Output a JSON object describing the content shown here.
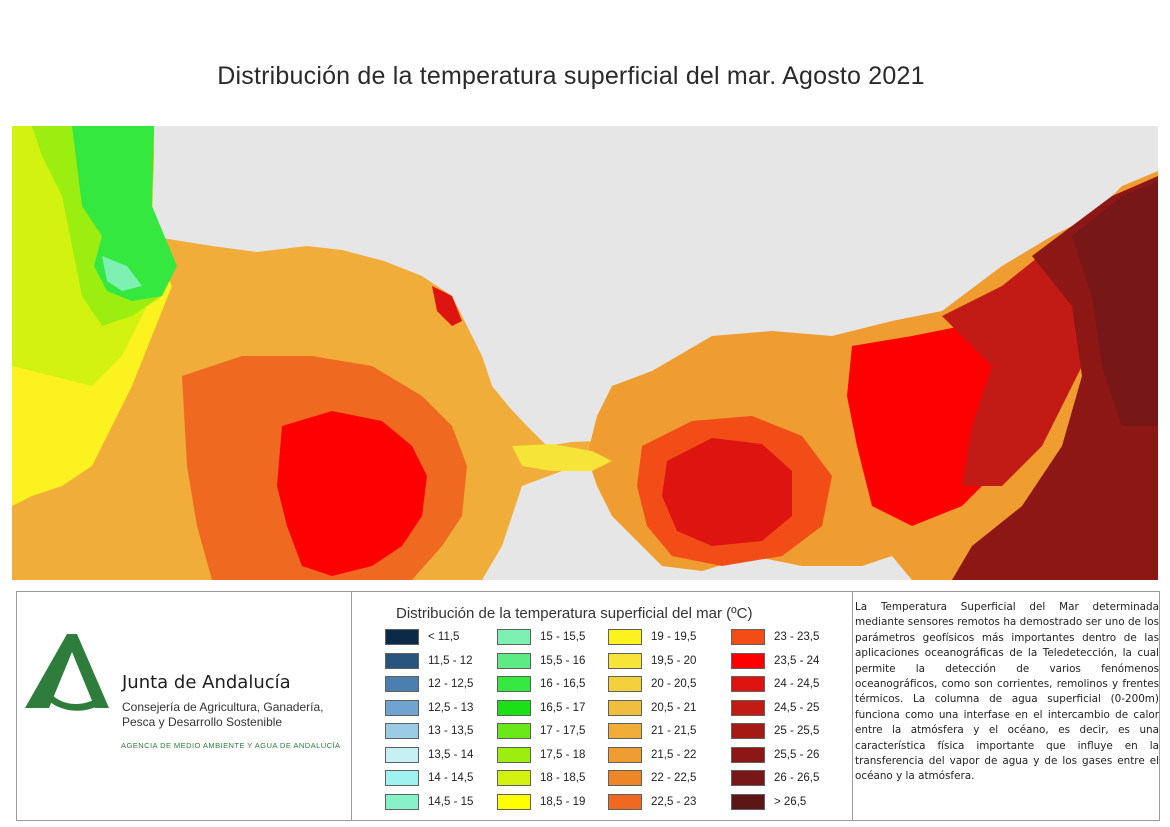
{
  "title": "Distribución de la temperatura superficial del mar. Agosto 2021",
  "logo": {
    "org_name": "Junta de Andalucía",
    "department": "Consejería de Agricultura, Ganadería, Pesca y Desarrollo Sostenible",
    "agency": "AGENCIA DE MEDIO AMBIENTE Y AGUA DE ANDALUCÍA",
    "color": "#2f7d3c"
  },
  "legend": {
    "title": "Distribución de la temperatura superficial del mar (ºC)",
    "classes": [
      {
        "label": "< 11,5",
        "color": "#0a2a47"
      },
      {
        "label": "11,5 - 12",
        "color": "#27557d"
      },
      {
        "label": "12 - 12,5",
        "color": "#4b7fb0"
      },
      {
        "label": "12,5 - 13",
        "color": "#6fa3d0"
      },
      {
        "label": "13 - 13,5",
        "color": "#9ccbe6"
      },
      {
        "label": "13,5 - 14",
        "color": "#c7f0f5"
      },
      {
        "label": "14 - 14,5",
        "color": "#9ff2ef"
      },
      {
        "label": "14,5 - 15",
        "color": "#88f1c8"
      },
      {
        "label": "15 - 15,5",
        "color": "#7ef0b2"
      },
      {
        "label": "15,5 - 16",
        "color": "#5eeb84"
      },
      {
        "label": "16 - 16,5",
        "color": "#35e83f"
      },
      {
        "label": "16,5 - 17",
        "color": "#1be015"
      },
      {
        "label": "17 - 17,5",
        "color": "#6ae81a"
      },
      {
        "label": "17,5 - 18",
        "color": "#9cee10"
      },
      {
        "label": "18 - 18,5",
        "color": "#d4f210"
      },
      {
        "label": "18,5 - 19",
        "color": "#ffff00"
      },
      {
        "label": "19 - 19,5",
        "color": "#fbf21f"
      },
      {
        "label": "19,5 - 20",
        "color": "#f7e438"
      },
      {
        "label": "20 - 20,5",
        "color": "#f3d03c"
      },
      {
        "label": "20,5 - 21",
        "color": "#f1bd3c"
      },
      {
        "label": "21 - 21,5",
        "color": "#f0ad3a"
      },
      {
        "label": "21,5 - 22",
        "color": "#ef9c30"
      },
      {
        "label": "22 - 22,5",
        "color": "#ee8628"
      },
      {
        "label": "22,5 - 23",
        "color": "#ef6a20"
      },
      {
        "label": "23 - 23,5",
        "color": "#f24d17"
      },
      {
        "label": "23,5 - 24",
        "color": "#ff0000"
      },
      {
        "label": "24 - 24,5",
        "color": "#de1410"
      },
      {
        "label": "24,5 - 25",
        "color": "#c21a14"
      },
      {
        "label": "25 - 25,5",
        "color": "#a51a14"
      },
      {
        "label": "25,5 - 26",
        "color": "#8d1715"
      },
      {
        "label": "26 - 26,5",
        "color": "#781717"
      },
      {
        "label": "> 26,5",
        "color": "#5c1616"
      }
    ]
  },
  "description": "La Temperatura Superficial del Mar determinada mediante sensores remotos ha demostrado ser uno de los parámetros geofísicos más importantes dentro de las aplicaciones oceanográficas de la Teledetección, la cual permite la detección de varios fenómenos oceanográficos, como son corrientes, remolinos y frentes térmicos. La columna de agua superficial (0-200m) funciona como una interfase en el intercambio de calor entre la atmósfera y el océano, es decir, es una característica física importante que influye en la transferencia del vapor de agua y de los gases entre el océano y la atmósfera.",
  "map": {
    "land_color": "#e6e6e6"
  }
}
